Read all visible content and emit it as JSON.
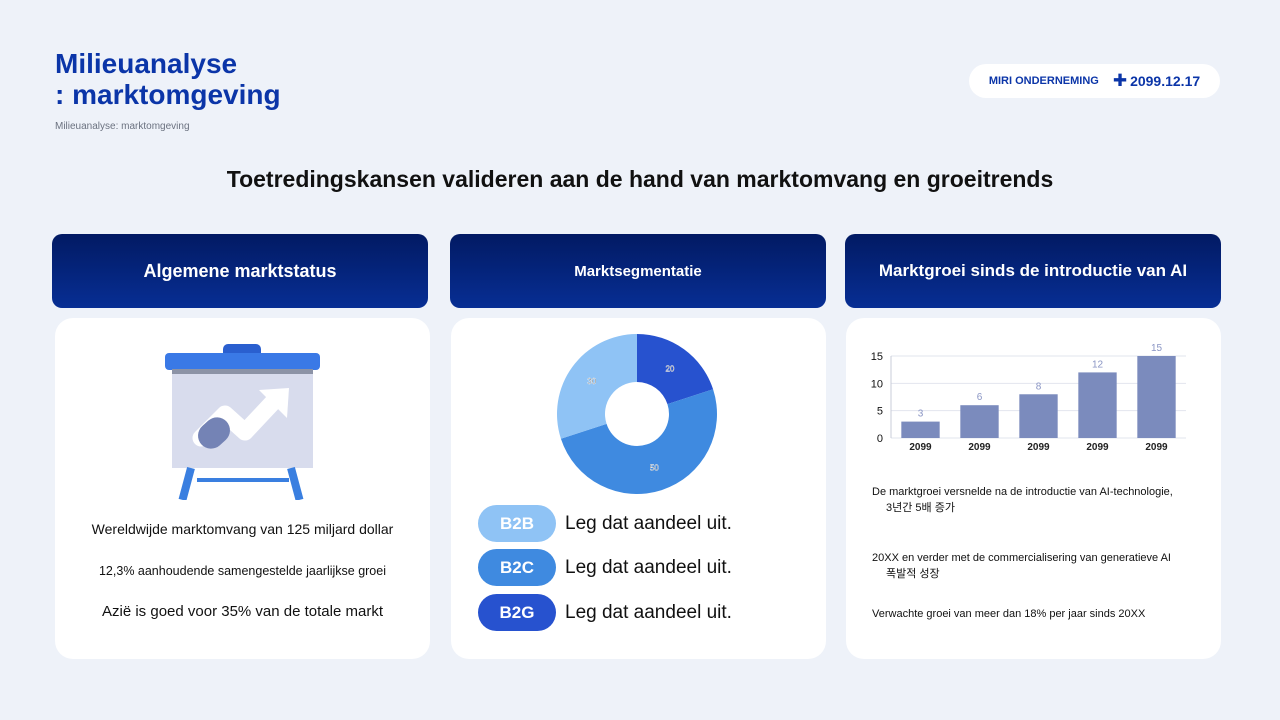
{
  "header": {
    "title_line1": "Milieuanalyse",
    "title_line2": ": marktomgeving",
    "subtitle": "Milieuanalyse: marktomgeving",
    "company": "MIRI ONDERNEMING",
    "date": "2099.12.17",
    "date_icon": "plus-icon"
  },
  "headline": "Toetredingskansen valideren aan de hand van marktomvang en groeitrends",
  "columns": [
    {
      "title": "Algemene marktstatus"
    },
    {
      "title": "Marktsegmentatie"
    },
    {
      "title": "Marktgroei sinds de introductie van AI"
    }
  ],
  "market_status": {
    "icon": "presentation-board-chart-icon",
    "stats": [
      "Wereldwijde marktomvang van 125 miljard dollar",
      "12,3% aanhoudende samengestelde jaarlijkse groei",
      "Azië is goed voor 35% van de totale markt"
    ]
  },
  "segmentation": {
    "segments": [
      {
        "label": "B2B",
        "text": "Leg dat aandeel uit.",
        "color": "#8fc3f5"
      },
      {
        "label": "B2C",
        "text": "Leg dat aandeel uit.",
        "color": "#3f8ae0"
      },
      {
        "label": "B2G",
        "text": "Leg dat aandeel uit.",
        "color": "#2752cf"
      }
    ]
  },
  "growth": {
    "notes": [
      {
        "line1": "De marktgroei versnelde na de introductie van AI-technologie,",
        "line2": "3년간 5배 증가"
      },
      {
        "line1": "20XX en verder met de commercialisering van generatieve AI",
        "line2": "폭발적 성장"
      },
      {
        "line1": "Verwachte groei van meer dan 18% per jaar sinds 20XX",
        "line2": ""
      }
    ]
  },
  "chart_data": [
    {
      "type": "pie",
      "donut": true,
      "categories": [
        "20",
        "50",
        "30"
      ],
      "values": [
        20,
        50,
        30
      ],
      "colors": [
        "#2752cf",
        "#3f8ae0",
        "#8fc3f5"
      ]
    },
    {
      "type": "bar",
      "categories": [
        "2099",
        "2099",
        "2099",
        "2099",
        "2099"
      ],
      "values": [
        3,
        6,
        8,
        12,
        15
      ],
      "ylim": [
        0,
        15
      ],
      "yticks": [
        0,
        5,
        10,
        15
      ],
      "grid": true,
      "bar_color": "#7b8bbd",
      "label_color": "#8a95c4"
    }
  ]
}
